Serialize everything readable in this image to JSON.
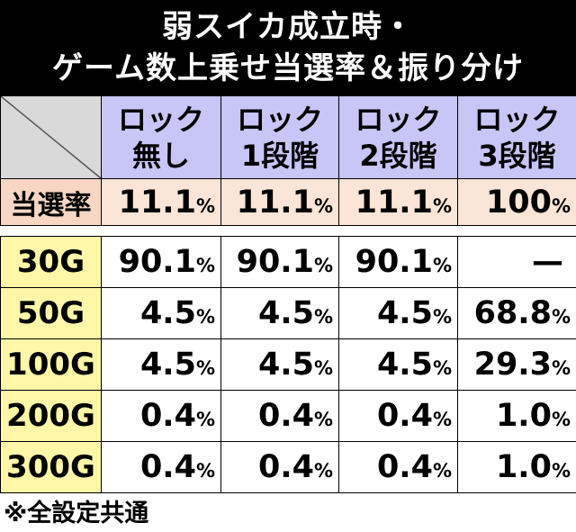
{
  "title": {
    "line1": "弱スイカ成立時・",
    "line2": "ゲーム数上乗せ当選率＆振り分け"
  },
  "header": [
    {
      "line1": "ロック",
      "line2": "無し"
    },
    {
      "line1": "ロック",
      "line2": "1段階"
    },
    {
      "line1": "ロック",
      "line2": "2段階"
    },
    {
      "line1": "ロック",
      "line2": "3段階"
    }
  ],
  "rate": {
    "label": "当選率",
    "values": [
      "11.1",
      "11.1",
      "11.1",
      "100"
    ]
  },
  "pct": "%",
  "rows": [
    {
      "label": "30G",
      "values": [
        "90.1",
        "90.1",
        "90.1",
        "—"
      ]
    },
    {
      "label": "50G",
      "values": [
        "4.5",
        "4.5",
        "4.5",
        "68.8"
      ]
    },
    {
      "label": "100G",
      "values": [
        "4.5",
        "4.5",
        "4.5",
        "29.3"
      ]
    },
    {
      "label": "200G",
      "values": [
        "0.4",
        "0.4",
        "0.4",
        "1.0"
      ]
    },
    {
      "label": "300G",
      "values": [
        "0.4",
        "0.4",
        "0.4",
        "1.0"
      ]
    }
  ],
  "footnote": "※全設定共通"
}
